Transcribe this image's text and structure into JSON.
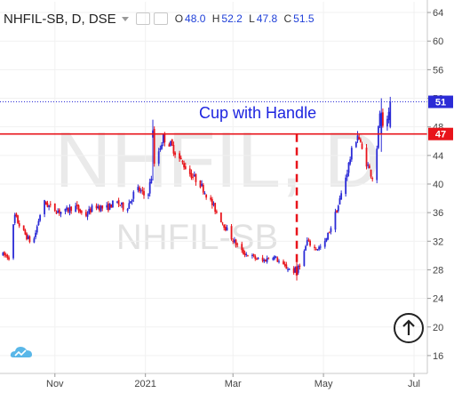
{
  "header": {
    "symbol": "NHFIL-SB, D, DSE",
    "o_label": "O",
    "o_value": "48.0",
    "h_label": "H",
    "h_value": "52.2",
    "l_label": "L",
    "l_value": "47.8",
    "c_label": "C",
    "c_value": "51.5"
  },
  "watermark": {
    "big": "NHFIL, D",
    "small": "NHFIL-SB"
  },
  "annotation": {
    "text": "Cup with Handle",
    "line_price": 47,
    "dashed_line_date": "2021-04-13",
    "color": "#e8141b",
    "text_color": "#1d24e0"
  },
  "last_price_label": "51",
  "level_label": "47",
  "colors": {
    "up": "#2b2bd6",
    "down": "#e8141b",
    "accent_blue": "#1d24e0"
  },
  "icons": {
    "scroll_button": "arrow-up-circle-icon",
    "logo": "cloud-logo-icon"
  },
  "chart_data": {
    "type": "candlestick",
    "x_range": [
      "2020-09-25",
      "2021-07-10"
    ],
    "ylim": [
      13.5,
      65.5
    ],
    "y_ticks": [
      16,
      20,
      24,
      28,
      32,
      36,
      40,
      44,
      48,
      52,
      56,
      60,
      64
    ],
    "x_ticks": [
      {
        "label": "Nov",
        "date": "2020-11-01"
      },
      {
        "label": "2021",
        "date": "2021-01-01"
      },
      {
        "label": "Mar",
        "date": "2021-03-01"
      },
      {
        "label": "May",
        "date": "2021-05-01"
      },
      {
        "label": "Jul",
        "date": "2021-07-01"
      }
    ],
    "close_path": [
      [
        "2020-09-25",
        30.2
      ],
      [
        "2020-10-01",
        29.8
      ],
      [
        "2020-10-05",
        35.5
      ],
      [
        "2020-10-10",
        33.5
      ],
      [
        "2020-10-17",
        31.5
      ],
      [
        "2020-10-24",
        37.5
      ],
      [
        "2020-10-31",
        36.5
      ],
      [
        "2020-11-07",
        36.0
      ],
      [
        "2020-11-14",
        37.0
      ],
      [
        "2020-11-21",
        35.5
      ],
      [
        "2020-11-28",
        37.0
      ],
      [
        "2020-12-05",
        36.5
      ],
      [
        "2020-12-12",
        37.5
      ],
      [
        "2020-12-19",
        36.5
      ],
      [
        "2020-12-26",
        39.5
      ],
      [
        "2021-01-02",
        38.0
      ],
      [
        "2021-01-05",
        41.0
      ],
      [
        "2021-01-09",
        44.0
      ],
      [
        "2021-01-13",
        46.5
      ],
      [
        "2021-01-18",
        45.5
      ],
      [
        "2021-01-24",
        43.5
      ],
      [
        "2021-01-31",
        41.5
      ],
      [
        "2021-02-07",
        40.0
      ],
      [
        "2021-02-14",
        37.5
      ],
      [
        "2021-02-21",
        35.0
      ],
      [
        "2021-02-28",
        32.5
      ],
      [
        "2021-03-07",
        30.5
      ],
      [
        "2021-03-14",
        29.8
      ],
      [
        "2021-03-21",
        29.2
      ],
      [
        "2021-03-28",
        30.0
      ],
      [
        "2021-04-04",
        28.5
      ],
      [
        "2021-04-11",
        27.8
      ],
      [
        "2021-04-16",
        29.0
      ],
      [
        "2021-04-20",
        32.0
      ],
      [
        "2021-04-25",
        31.0
      ],
      [
        "2021-05-01",
        31.2
      ],
      [
        "2021-05-06",
        34.0
      ],
      [
        "2021-05-11",
        37.0
      ],
      [
        "2021-05-16",
        41.0
      ],
      [
        "2021-05-20",
        44.5
      ],
      [
        "2021-05-24",
        47.0
      ],
      [
        "2021-05-28",
        44.0
      ],
      [
        "2021-06-01",
        42.0
      ],
      [
        "2021-06-04",
        40.5
      ],
      [
        "2021-06-08",
        50.0
      ],
      [
        "2021-06-11",
        46.5
      ],
      [
        "2021-06-14",
        49.5
      ],
      [
        "2021-06-15",
        51.5
      ]
    ],
    "key_candles": [
      {
        "date": "2021-01-06",
        "open": 46.5,
        "high": 49.0,
        "low": 40.5,
        "close": 47.5
      },
      {
        "date": "2021-04-13",
        "open": 28.5,
        "high": 29.5,
        "low": 26.5,
        "close": 27.5
      },
      {
        "date": "2021-06-09",
        "open": 47.0,
        "high": 52.0,
        "low": 44.5,
        "close": 50.0
      },
      {
        "date": "2021-06-15",
        "open": 48.0,
        "high": 52.2,
        "low": 47.8,
        "close": 51.5
      }
    ]
  }
}
